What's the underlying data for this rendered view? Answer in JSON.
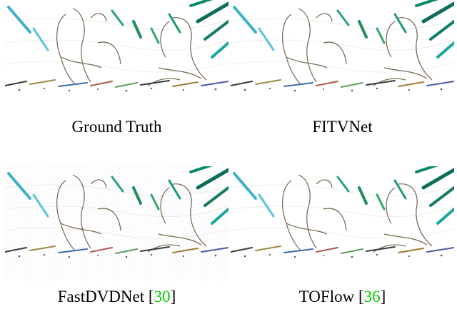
{
  "panels": [
    {
      "id": "gt",
      "caption": "Ground Truth",
      "ref": ""
    },
    {
      "id": "fitv",
      "caption": "FITVNet",
      "ref": ""
    },
    {
      "id": "fast",
      "caption": "FastDVDNet",
      "ref": "30"
    },
    {
      "id": "tof",
      "caption": "TOFlow",
      "ref": "36"
    }
  ],
  "colors": {
    "citation": "#00cc00",
    "text": "#000000"
  }
}
